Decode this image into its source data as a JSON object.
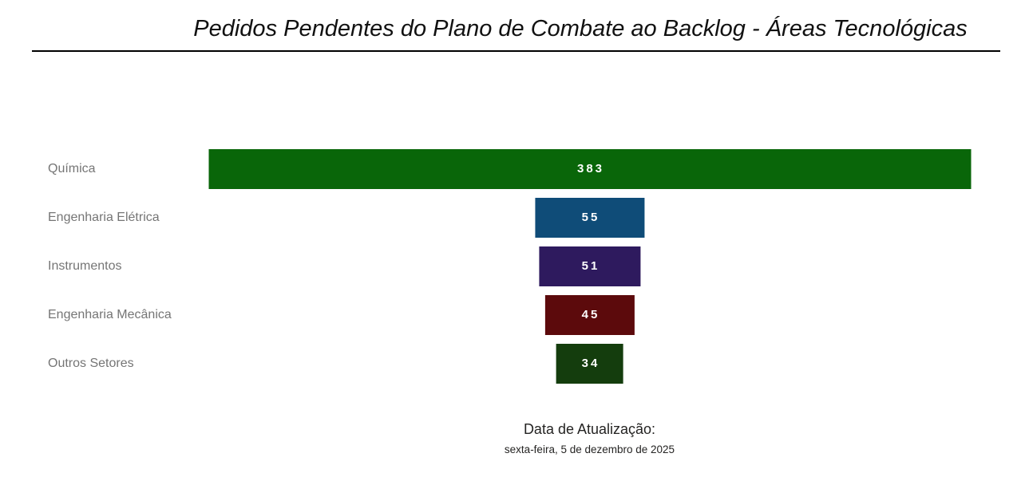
{
  "title": {
    "text": "Pedidos Pendentes do Plano de Combate ao Backlog - Áreas Tecnológicas"
  },
  "footer": {
    "label": "Data de Atualização:",
    "date": "sexta-feira, 5 de dezembro de 2025"
  },
  "chart_data": {
    "type": "bar",
    "subtype": "funnel-horizontal-centered",
    "title": "Pedidos Pendentes do Plano de Combate ao Backlog - Áreas Tecnológicas",
    "categories": [
      "Química",
      "Engenharia Elétrica",
      "Instrumentos",
      "Engenharia Mecânica",
      "Outros Setores"
    ],
    "values": [
      383,
      55,
      51,
      45,
      34
    ],
    "colors": [
      "#096609",
      "#0f4c78",
      "#2e1a5e",
      "#5c0a0c",
      "#143d0d"
    ],
    "max_value": 383,
    "value_label_color": "#ffffff",
    "category_label_color": "#757575",
    "legend": "none",
    "grid": "off",
    "orientation": "horizontal",
    "bars_centered": true
  }
}
